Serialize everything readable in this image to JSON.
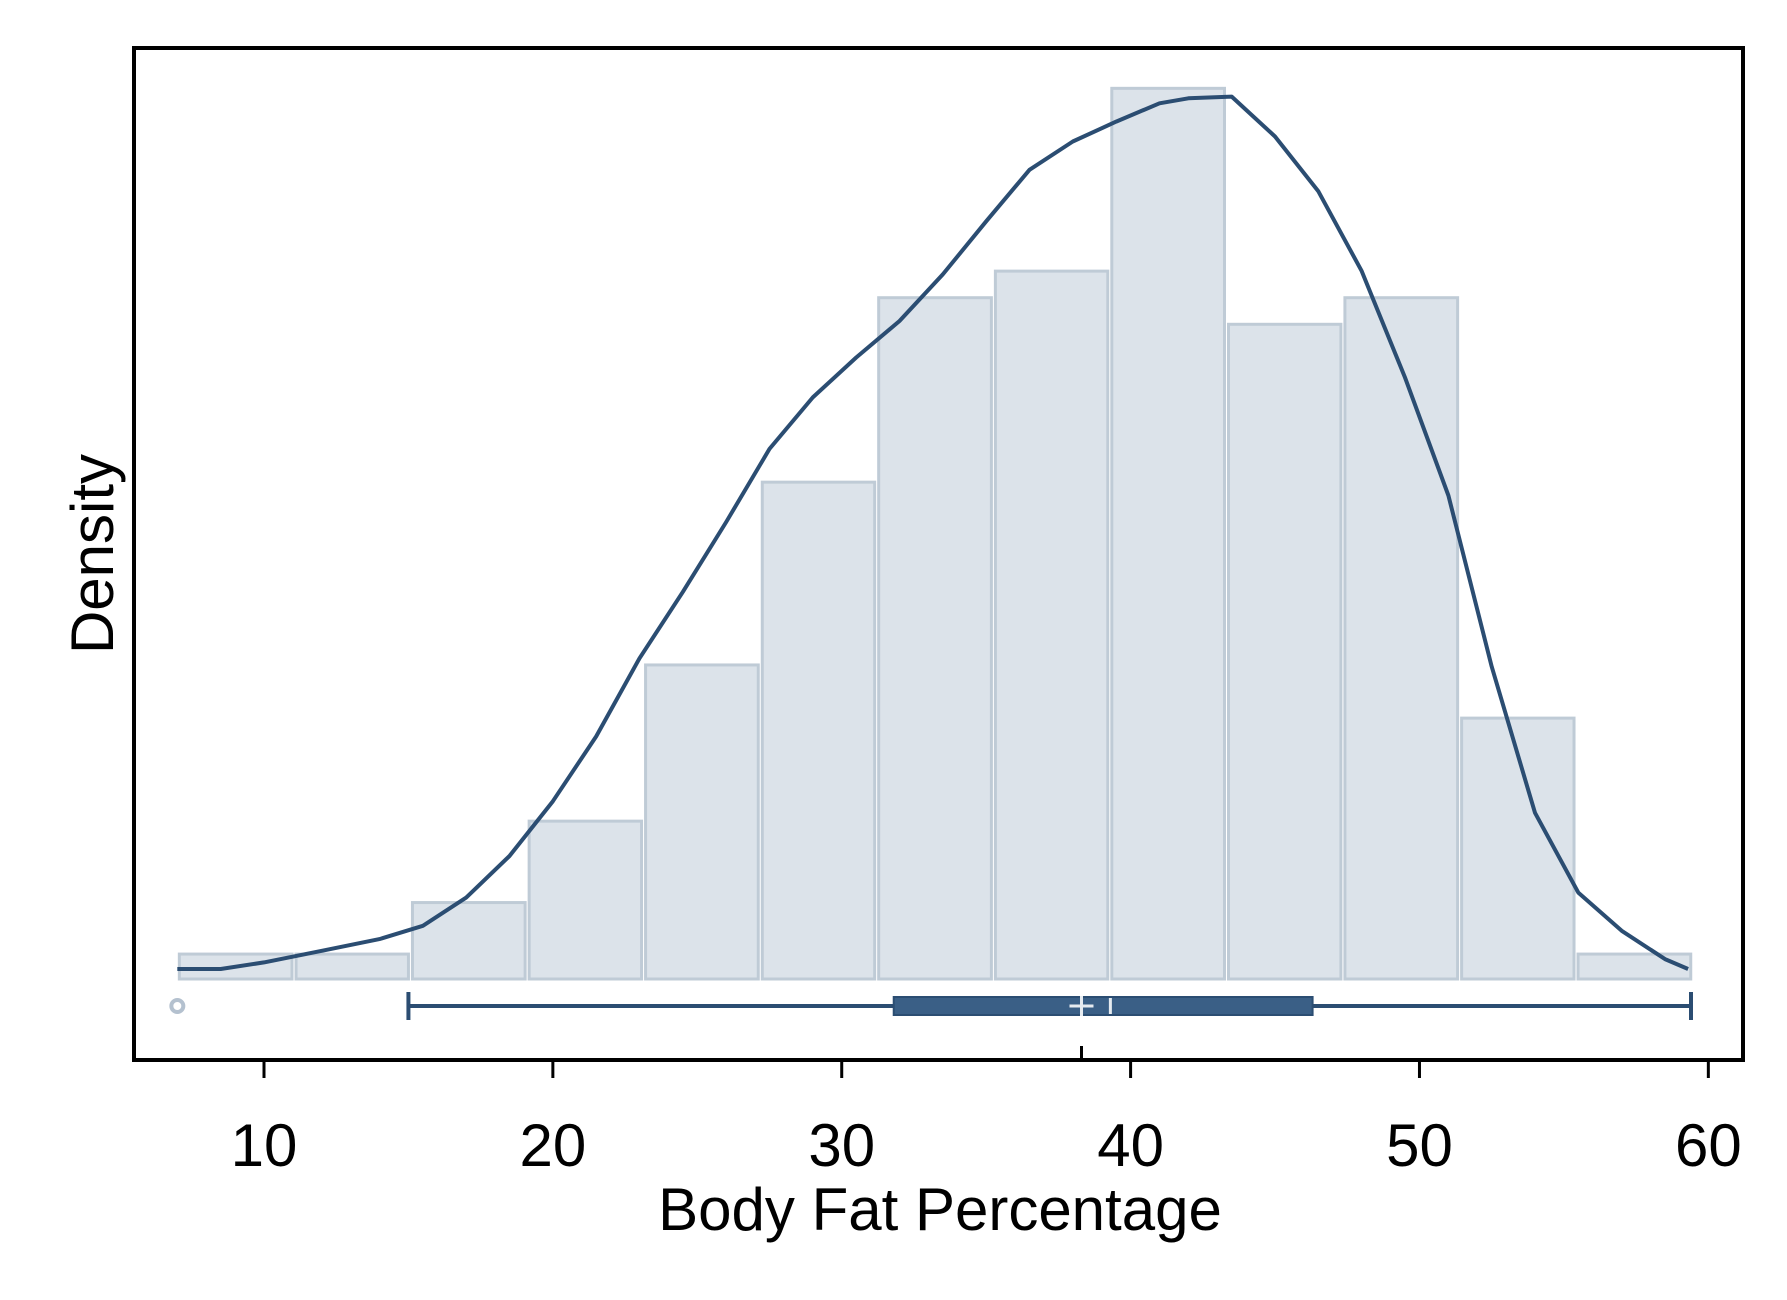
{
  "chart_data": {
    "type": "bar",
    "title": "",
    "xlabel": "Body Fat Percentage",
    "ylabel": "Density",
    "xlim": [
      5.5,
      61.2
    ],
    "ylim": [
      0,
      0.0535
    ],
    "x_ticks": [
      10,
      20,
      30,
      40,
      50,
      60
    ],
    "x_tick_labels": [
      "10",
      "20",
      "30",
      "40",
      "50",
      "60"
    ],
    "grid": false,
    "legend": "none",
    "histogram": {
      "bin_edges": [
        7.0,
        11.04,
        15.07,
        19.11,
        23.14,
        27.18,
        31.21,
        35.25,
        39.28,
        43.32,
        47.35,
        51.39,
        55.42,
        59.46
      ],
      "values": [
        0.0015,
        0.0015,
        0.0046,
        0.0095,
        0.0189,
        0.0299,
        0.041,
        0.0426,
        0.0536,
        0.0394,
        0.041,
        0.0157,
        0.0015
      ]
    },
    "density_curve": {
      "x": [
        7.0,
        8.5,
        10.0,
        12.0,
        14.0,
        15.5,
        17.0,
        18.5,
        20.0,
        21.5,
        23.0,
        24.5,
        26.0,
        27.5,
        29.0,
        30.5,
        32.0,
        33.5,
        35.0,
        36.5,
        38.0,
        39.5,
        41.0,
        42.0,
        43.5,
        45.0,
        46.5,
        48.0,
        49.5,
        51.0,
        52.5,
        54.0,
        55.5,
        57.0,
        58.5,
        59.3
      ],
      "y": [
        0.0006,
        0.0006,
        0.001,
        0.0017,
        0.0024,
        0.0032,
        0.0049,
        0.0074,
        0.0107,
        0.0146,
        0.0193,
        0.0233,
        0.0275,
        0.0319,
        0.035,
        0.0374,
        0.0396,
        0.0424,
        0.0456,
        0.0487,
        0.0504,
        0.0516,
        0.0527,
        0.053,
        0.0531,
        0.0507,
        0.0474,
        0.0426,
        0.0362,
        0.0291,
        0.0188,
        0.01,
        0.0052,
        0.0029,
        0.0012,
        0.0006
      ]
    },
    "boxplot": {
      "outliers": [
        7.0
      ],
      "whisker_low": 15.0,
      "q1": 31.8,
      "median": 39.3,
      "mean": 38.3,
      "q3": 46.3,
      "whisker_high": 59.4
    },
    "colors": {
      "bar_fill": "#dce3ea",
      "bar_stroke": "#bfcbd6",
      "curve": "#2b4d72",
      "box": "#3a5f86",
      "outlier": "#b4c1cf",
      "axis": "#000000"
    }
  }
}
